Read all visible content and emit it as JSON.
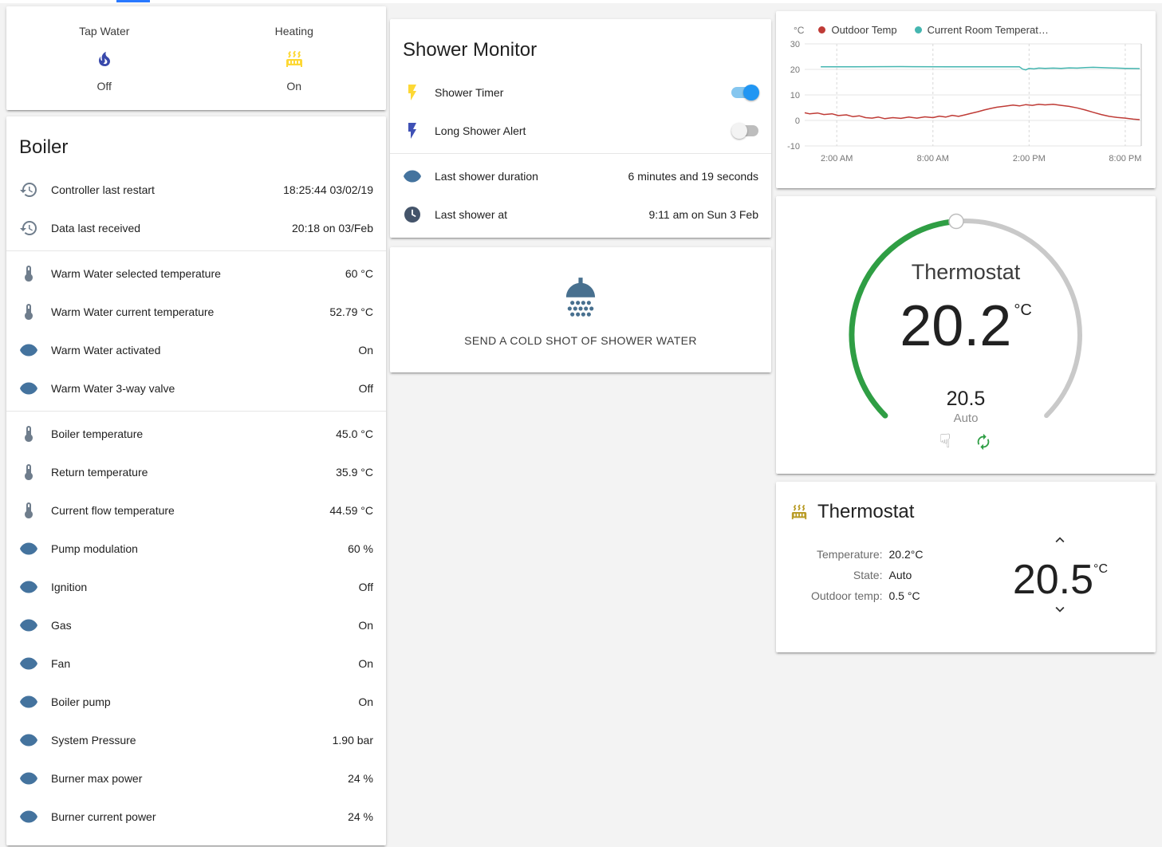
{
  "page": {
    "accent": "#2979ff"
  },
  "glance": {
    "items": [
      {
        "label": "Tap Water",
        "state": "Off",
        "icon": "fire",
        "color": "#3949ab"
      },
      {
        "label": "Heating",
        "state": "On",
        "icon": "radiator",
        "color": "#fdd835"
      }
    ]
  },
  "boiler": {
    "title": "Boiler",
    "sections": [
      {
        "rows": [
          {
            "icon": "history",
            "color": "#6f7d8c",
            "label": "Controller last restart",
            "value": "18:25:44 03/02/19"
          },
          {
            "icon": "history",
            "color": "#6f7d8c",
            "label": "Data last received",
            "value": "20:18 on 03/Feb"
          }
        ]
      },
      {
        "rows": [
          {
            "icon": "thermometer",
            "color": "#6f7d8c",
            "label": "Warm Water selected temperature",
            "value": "60 °C"
          },
          {
            "icon": "thermometer",
            "color": "#6f7d8c",
            "label": "Warm Water current temperature",
            "value": "52.79 °C"
          },
          {
            "icon": "eye",
            "color": "#44739e",
            "label": "Warm Water activated",
            "value": "On"
          },
          {
            "icon": "eye",
            "color": "#44739e",
            "label": "Warm Water 3-way valve",
            "value": "Off"
          }
        ]
      },
      {
        "rows": [
          {
            "icon": "thermometer",
            "color": "#6f7d8c",
            "label": "Boiler temperature",
            "value": "45.0 °C"
          },
          {
            "icon": "thermometer",
            "color": "#6f7d8c",
            "label": "Return temperature",
            "value": "35.9 °C"
          },
          {
            "icon": "thermometer",
            "color": "#6f7d8c",
            "label": "Current flow temperature",
            "value": "44.59 °C"
          },
          {
            "icon": "eye",
            "color": "#44739e",
            "label": "Pump modulation",
            "value": "60 %"
          },
          {
            "icon": "eye",
            "color": "#44739e",
            "label": "Ignition",
            "value": "Off"
          },
          {
            "icon": "eye",
            "color": "#44739e",
            "label": "Gas",
            "value": "On"
          },
          {
            "icon": "eye",
            "color": "#44739e",
            "label": "Fan",
            "value": "On"
          },
          {
            "icon": "eye",
            "color": "#44739e",
            "label": "Boiler pump",
            "value": "On"
          },
          {
            "icon": "eye",
            "color": "#44739e",
            "label": "System Pressure",
            "value": "1.90 bar"
          },
          {
            "icon": "eye",
            "color": "#44739e",
            "label": "Burner max power",
            "value": "24 %"
          },
          {
            "icon": "eye",
            "color": "#44739e",
            "label": "Burner current power",
            "value": "24 %"
          }
        ]
      }
    ]
  },
  "shower_monitor": {
    "title": "Shower Monitor",
    "toggles": [
      {
        "icon": "flash",
        "color": "#fdd835",
        "label": "Shower Timer",
        "on": true
      },
      {
        "icon": "flash",
        "color": "#3f51b5",
        "label": "Long Shower Alert",
        "on": false
      }
    ],
    "info_rows": [
      {
        "icon": "eye",
        "color": "#44739e",
        "label": "Last shower duration",
        "value": "6 minutes and 19 seconds"
      },
      {
        "icon": "clock",
        "color": "#44546a",
        "label": "Last shower at",
        "value": "9:11 am on Sun 3 Feb"
      }
    ]
  },
  "shower_button": {
    "label": "SEND A COLD SHOT OF SHOWER WATER"
  },
  "chart_data": {
    "type": "line",
    "unit": "°C",
    "ylim": [
      -10,
      30
    ],
    "yticks": [
      30,
      20,
      10,
      0,
      -10
    ],
    "xlim": [
      0,
      21
    ],
    "xticks": [
      {
        "x": 2,
        "label": "2:00 AM"
      },
      {
        "x": 8,
        "label": "8:00 AM"
      },
      {
        "x": 14,
        "label": "2:00 PM"
      },
      {
        "x": 20,
        "label": "8:00 PM"
      }
    ],
    "legend_position": "top",
    "grid": true,
    "series": [
      {
        "name": "Outdoor Temp",
        "color": "#bf3b36",
        "points": [
          [
            0,
            3.0
          ],
          [
            0.3,
            2.6
          ],
          [
            0.8,
            2.9
          ],
          [
            1.2,
            2.3
          ],
          [
            1.7,
            2.6
          ],
          [
            2.1,
            1.9
          ],
          [
            2.6,
            2.2
          ],
          [
            3.0,
            1.5
          ],
          [
            3.4,
            1.8
          ],
          [
            3.8,
            1.1
          ],
          [
            4.2,
            0.9
          ],
          [
            4.6,
            1.3
          ],
          [
            5.0,
            0.7
          ],
          [
            5.5,
            1.1
          ],
          [
            6.0,
            0.8
          ],
          [
            6.5,
            1.3
          ],
          [
            7.0,
            0.9
          ],
          [
            7.5,
            1.4
          ],
          [
            8.0,
            1.1
          ],
          [
            8.4,
            1.7
          ],
          [
            8.8,
            1.3
          ],
          [
            9.2,
            2.0
          ],
          [
            9.6,
            1.6
          ],
          [
            10.0,
            2.2
          ],
          [
            10.4,
            2.8
          ],
          [
            10.8,
            3.4
          ],
          [
            11.2,
            4.1
          ],
          [
            11.6,
            4.7
          ],
          [
            12.0,
            5.2
          ],
          [
            12.5,
            5.6
          ],
          [
            13.0,
            6.0
          ],
          [
            13.4,
            5.7
          ],
          [
            13.8,
            6.2
          ],
          [
            14.2,
            5.9
          ],
          [
            14.6,
            6.3
          ],
          [
            15.0,
            6.1
          ],
          [
            15.5,
            6.3
          ],
          [
            16.0,
            5.9
          ],
          [
            16.5,
            5.5
          ],
          [
            17.0,
            4.9
          ],
          [
            17.5,
            4.1
          ],
          [
            18.0,
            3.2
          ],
          [
            18.5,
            2.3
          ],
          [
            19.0,
            1.6
          ],
          [
            19.5,
            1.2
          ],
          [
            20.0,
            0.9
          ],
          [
            20.5,
            0.5
          ],
          [
            20.9,
            0.3
          ]
        ]
      },
      {
        "name": "Current Room Temperat…",
        "color": "#45b6b0",
        "points": [
          [
            1.0,
            21.0
          ],
          [
            3.0,
            21.0
          ],
          [
            6.0,
            21.1
          ],
          [
            9.0,
            21.0
          ],
          [
            12.0,
            21.0
          ],
          [
            13.4,
            21.0
          ],
          [
            13.6,
            20.1
          ],
          [
            13.8,
            19.8
          ],
          [
            14.0,
            20.4
          ],
          [
            14.3,
            20.2
          ],
          [
            14.6,
            20.5
          ],
          [
            15.0,
            20.4
          ],
          [
            15.5,
            20.5
          ],
          [
            16.0,
            20.4
          ],
          [
            16.5,
            20.6
          ],
          [
            17.0,
            20.5
          ],
          [
            17.5,
            20.7
          ],
          [
            18.0,
            20.8
          ],
          [
            18.5,
            20.7
          ],
          [
            19.0,
            20.6
          ],
          [
            19.5,
            20.5
          ],
          [
            20.0,
            20.4
          ],
          [
            20.9,
            20.3
          ]
        ]
      }
    ]
  },
  "dial": {
    "title": "Thermostat",
    "current": "20.2",
    "unit": "°C",
    "target": "20.5",
    "mode": "Auto",
    "min": 7,
    "max": 35,
    "value": 20.5,
    "arc_color": "#2f9e44",
    "track_color": "#c9c9c9",
    "manual_icon_glyph": "☟"
  },
  "thermostat_card": {
    "title": "Thermostat",
    "rows": [
      {
        "label": "Temperature:",
        "value": "20.2°C"
      },
      {
        "label": "State:",
        "value": "Auto"
      },
      {
        "label": "Outdoor temp:",
        "value": "0.5 °C"
      }
    ],
    "target": "20.5",
    "unit": "°C"
  }
}
